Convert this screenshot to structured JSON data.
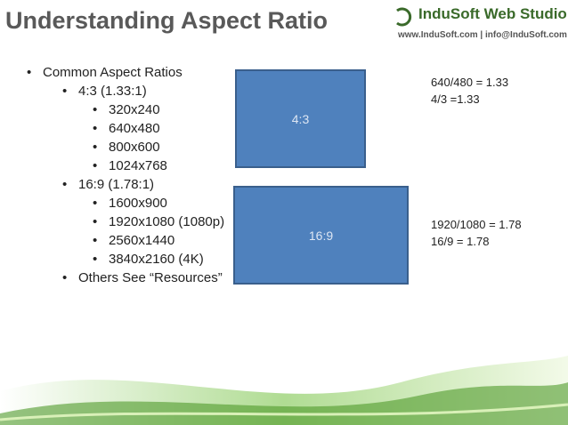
{
  "header": {
    "title": "Understanding Aspect Ratio",
    "logo": "InduSoft Web Studio",
    "contact": "www.InduSoft.com | info@InduSoft.com"
  },
  "list": [
    {
      "text": "Common Aspect Ratios",
      "items": [
        {
          "text": "4:3 (1.33:1)",
          "items": [
            {
              "text": "320x240"
            },
            {
              "text": "640x480"
            },
            {
              "text": "800x600"
            },
            {
              "text": "1024x768"
            }
          ]
        },
        {
          "text": "16:9 (1.78:1)",
          "items": [
            {
              "text": "1600x900"
            },
            {
              "text": "1920x1080 (1080p)"
            },
            {
              "text": "2560x1440"
            },
            {
              "text": "3840x2160 (4K)"
            }
          ]
        },
        {
          "text": "Others See “Resources”"
        }
      ]
    }
  ],
  "boxes": [
    {
      "label": "4:3"
    },
    {
      "label": "16:9"
    }
  ],
  "notes": [
    [
      "640/480 = 1.33",
      "4/3 =1.33"
    ],
    [
      "1920/1080 = 1.78",
      "16/9 = 1.78"
    ]
  ]
}
